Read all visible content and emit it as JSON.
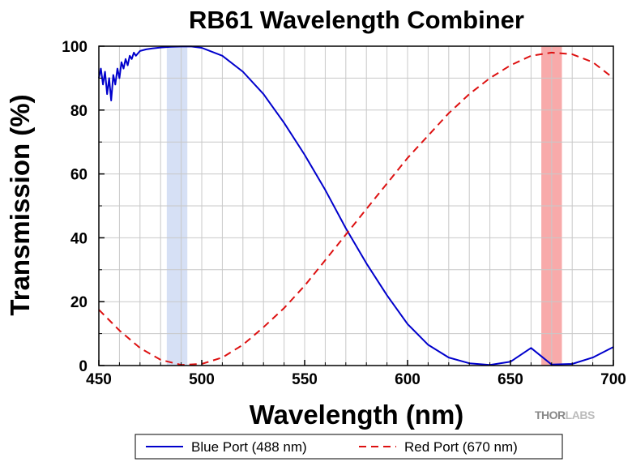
{
  "chart_data": {
    "type": "line",
    "title": "RB61 Wavelength Combiner",
    "xlabel": "Wavelength (nm)",
    "ylabel": "Transmission (%)",
    "xlim": [
      450,
      700
    ],
    "ylim": [
      0,
      100
    ],
    "xticks": [
      450,
      500,
      550,
      600,
      650,
      700
    ],
    "yticks": [
      0,
      20,
      40,
      60,
      80,
      100
    ],
    "grid": true,
    "legend_position": "bottom",
    "bands": [
      {
        "from": 483,
        "to": 493,
        "color": "#d6e0f5"
      },
      {
        "from": 665,
        "to": 675,
        "color": "#f8aaaa"
      }
    ],
    "series": [
      {
        "name": "Blue Port (488 nm)",
        "color": "#0000cc",
        "style": "solid",
        "x": [
          450,
          451,
          452,
          453,
          454,
          455,
          456,
          457,
          458,
          459,
          460,
          461,
          462,
          463,
          464,
          465,
          466,
          467,
          468,
          470,
          473,
          476,
          480,
          485,
          490,
          495,
          500,
          510,
          520,
          530,
          540,
          550,
          560,
          570,
          580,
          590,
          600,
          610,
          620,
          630,
          640,
          650,
          660,
          670,
          680,
          690,
          700
        ],
        "y": [
          90,
          93,
          88,
          92,
          85,
          90,
          83,
          91,
          88,
          93,
          90,
          95,
          93,
          96,
          94,
          97,
          96,
          98,
          97,
          98.5,
          99,
          99.3,
          99.6,
          99.8,
          99.9,
          99.9,
          99.5,
          97,
          92,
          85,
          76,
          66,
          55,
          43,
          32,
          22,
          13,
          6.5,
          2.5,
          0.7,
          0.2,
          1.2,
          5.5,
          0.3,
          0.5,
          2.5,
          5.8
        ]
      },
      {
        "name": "Red Port (670 nm)",
        "color": "#dd1111",
        "style": "dashed",
        "x": [
          450,
          460,
          470,
          480,
          490,
          500,
          510,
          520,
          530,
          540,
          550,
          560,
          570,
          580,
          590,
          600,
          610,
          620,
          630,
          640,
          650,
          660,
          670,
          680,
          690,
          700
        ],
        "y": [
          17.5,
          11,
          5.5,
          1.8,
          0.2,
          0.5,
          2.5,
          6.5,
          12,
          18,
          25,
          33,
          41,
          49,
          57,
          65,
          72,
          79,
          85,
          90,
          94,
          97,
          98,
          97.5,
          95,
          90
        ]
      }
    ]
  },
  "logo": {
    "part1": "THOR",
    "part2": "LABS"
  }
}
